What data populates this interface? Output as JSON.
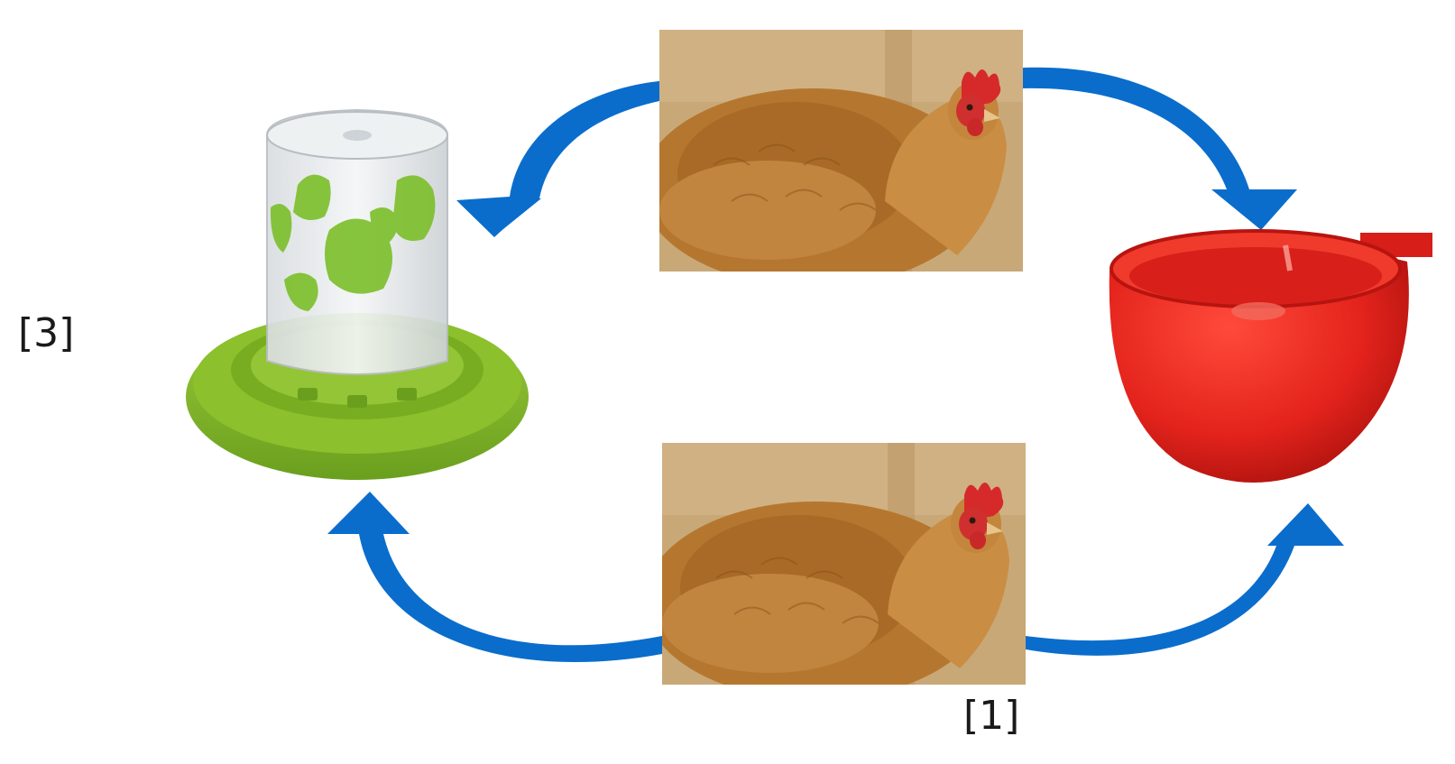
{
  "diagram": {
    "labels": {
      "left": "[3]",
      "bottom": "[1]"
    },
    "images": {
      "feeder": "green-jar-poultry-feeder",
      "waterer": "red-poultry-drinker-cup",
      "hen_top": "hen-photo",
      "hen_bottom": "hen-photo"
    },
    "colors": {
      "arrow": "#0a6dcc",
      "feeder_green": "#7fb626",
      "bowl_red": "#e3231c",
      "hen_plumage": "#b5772f",
      "barn_bg": "#c9a878"
    }
  }
}
